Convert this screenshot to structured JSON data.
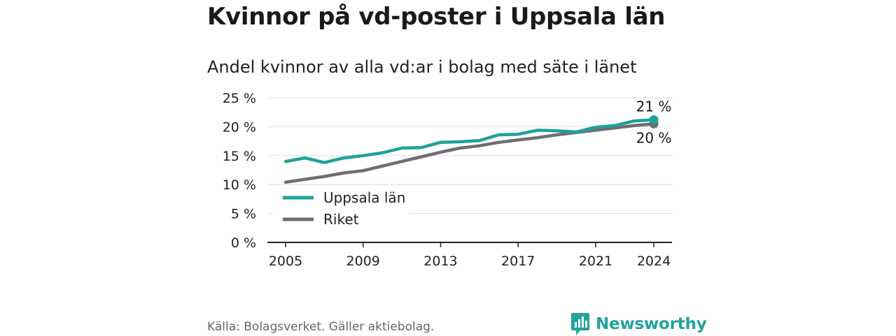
{
  "title": "Kvinnor på vd-poster i Uppsala län",
  "subtitle": "Andel kvinnor av alla vd:ar i bolag med säte i länet",
  "source": "Källa: Bolagsverket. Gäller aktiebolag.",
  "brand": "Newsworthy",
  "colors": {
    "uppsala": "#1fa198",
    "riket": "#6e6d72",
    "grid": "#dddddd",
    "axis": "#222222",
    "brand": "#23a39a"
  },
  "chart_data": {
    "type": "line",
    "title": "Andel kvinnor av alla vd:ar i bolag med säte i länet",
    "xlabel": "",
    "ylabel": "",
    "x": [
      2005,
      2006,
      2007,
      2008,
      2009,
      2010,
      2011,
      2012,
      2013,
      2014,
      2015,
      2016,
      2017,
      2018,
      2019,
      2020,
      2021,
      2022,
      2023,
      2024
    ],
    "xticks": [
      "2005",
      "2009",
      "2013",
      "2017",
      "2021",
      "2024"
    ],
    "yticks": [
      "0 %",
      "5 %",
      "10 %",
      "15 %",
      "20 %",
      "25 %"
    ],
    "ylim": [
      0,
      25
    ],
    "grid": true,
    "legend_position": "bottom-left",
    "series": [
      {
        "name": "Uppsala län",
        "color": "#1fa198",
        "values": [
          14.0,
          14.6,
          13.8,
          14.6,
          15.0,
          15.5,
          16.3,
          16.4,
          17.3,
          17.4,
          17.6,
          18.6,
          18.7,
          19.4,
          19.3,
          19.1,
          19.9,
          20.2,
          21.0,
          21.2
        ],
        "end_label": "21 %"
      },
      {
        "name": "Riket",
        "color": "#6e6d72",
        "values": [
          10.4,
          10.9,
          11.4,
          12.0,
          12.4,
          13.2,
          14.0,
          14.8,
          15.6,
          16.3,
          16.7,
          17.3,
          17.7,
          18.1,
          18.6,
          19.0,
          19.4,
          19.8,
          20.2,
          20.5
        ],
        "end_label": "20 %"
      }
    ]
  }
}
